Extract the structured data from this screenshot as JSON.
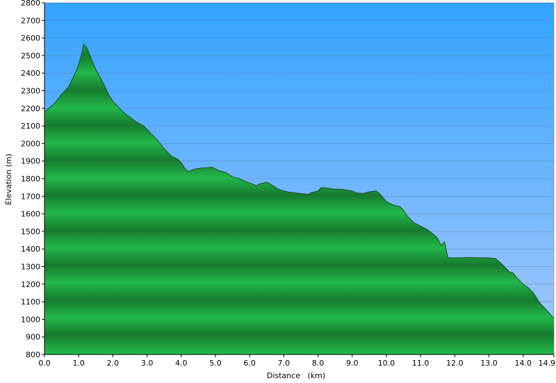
{
  "chart_data": {
    "type": "area",
    "title": "",
    "xlabel": "Distance   (km)",
    "ylabel": "Elevation (m)",
    "xlim": [
      0,
      14.9
    ],
    "ylim": [
      800,
      2800
    ],
    "x_ticks": [
      0,
      1,
      2,
      3,
      4,
      5,
      6,
      7,
      8,
      9,
      10,
      11,
      12,
      13,
      14,
      14.9
    ],
    "x_tick_labels": [
      "0.0",
      "1.0",
      "2.0",
      "3.0",
      "4.0",
      "5.0",
      "6.0",
      "7.0",
      "8.0",
      "9.0",
      "10.0",
      "11.0",
      "12.0",
      "13.0",
      "14.0",
      "14.9"
    ],
    "y_ticks": [
      800,
      900,
      1000,
      1100,
      1200,
      1300,
      1400,
      1500,
      1600,
      1700,
      1800,
      1900,
      2000,
      2100,
      2200,
      2300,
      2400,
      2500,
      2600,
      2700,
      2800
    ],
    "y_tick_labels": [
      "800",
      "900",
      "1000",
      "1100",
      "1200",
      "1300",
      "1400",
      "1500",
      "1600",
      "1700",
      "1800",
      "1900",
      "2000",
      "2100",
      "2200",
      "2300",
      "2400",
      "2500",
      "2600",
      "2700",
      "2800"
    ],
    "grid": true,
    "legend": "none",
    "colors": {
      "sky_top": "#33a3ff",
      "sky_bottom": "#a7c9fb",
      "fill_light": "#23b84a",
      "fill_dark": "#167a2e",
      "outline": "#1d4a2a",
      "grid": "#5a7fa8"
    },
    "series": [
      {
        "x": [
          0,
          0.1,
          0.3,
          0.5,
          0.7,
          0.9,
          1.0,
          1.1,
          1.15,
          1.25,
          1.35,
          1.5,
          1.7,
          1.9,
          2.0,
          2.2,
          2.35,
          2.5,
          2.7,
          2.9,
          3.1,
          3.3,
          3.5,
          3.7,
          3.9,
          4.0,
          4.1,
          4.2,
          4.4,
          4.6,
          4.9,
          5.1,
          5.3,
          5.5,
          5.6,
          5.7,
          5.8,
          6.0,
          6.2,
          6.3,
          6.5,
          6.6,
          6.8,
          6.9,
          7.1,
          7.3,
          7.5,
          7.7,
          7.8,
          8.0,
          8.1,
          8.3,
          8.5,
          8.7,
          9.0,
          9.1,
          9.3,
          9.5,
          9.7,
          9.8,
          10.0,
          10.2,
          10.4,
          10.5,
          10.6,
          10.8,
          11.0,
          11.2,
          11.4,
          11.5,
          11.6,
          11.7,
          11.8,
          12.0,
          12.2,
          12.4,
          12.6,
          12.8,
          13.0,
          13.2,
          13.4,
          13.5,
          13.6,
          13.7,
          13.8,
          14.0,
          14.15,
          14.3,
          14.5,
          14.7,
          14.9
        ],
        "y": [
          2180,
          2195,
          2230,
          2280,
          2320,
          2400,
          2450,
          2520,
          2565,
          2540,
          2490,
          2420,
          2350,
          2270,
          2240,
          2200,
          2170,
          2150,
          2120,
          2100,
          2060,
          2020,
          1970,
          1930,
          1910,
          1890,
          1860,
          1840,
          1855,
          1860,
          1865,
          1845,
          1835,
          1810,
          1805,
          1800,
          1790,
          1775,
          1760,
          1770,
          1780,
          1770,
          1745,
          1735,
          1725,
          1720,
          1715,
          1710,
          1720,
          1730,
          1750,
          1745,
          1740,
          1740,
          1730,
          1720,
          1715,
          1725,
          1730,
          1715,
          1670,
          1650,
          1640,
          1620,
          1590,
          1550,
          1530,
          1510,
          1480,
          1460,
          1420,
          1440,
          1350,
          1350,
          1350,
          1352,
          1350,
          1350,
          1350,
          1345,
          1310,
          1290,
          1270,
          1265,
          1240,
          1200,
          1180,
          1150,
          1090,
          1050,
          1005
        ]
      }
    ]
  }
}
